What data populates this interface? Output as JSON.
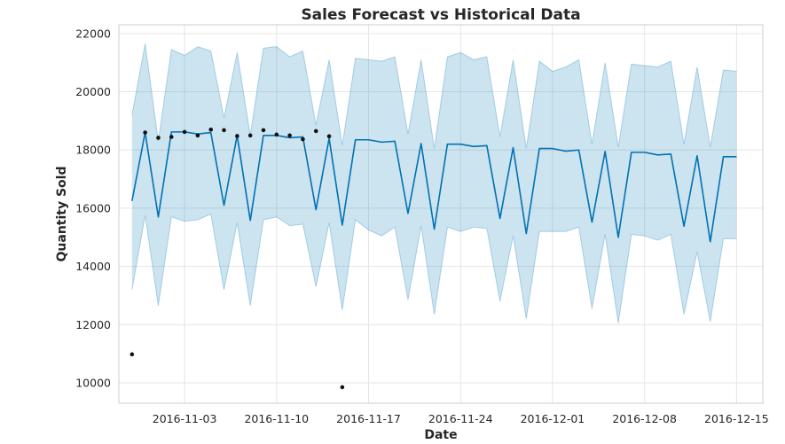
{
  "chart_data": {
    "type": "line",
    "title": "Sales Forecast vs Historical Data",
    "xlabel": "Date",
    "ylabel": "Quantity Sold",
    "x_start": "2016-10-30",
    "xlim": [
      "2016-10-29",
      "2016-12-17"
    ],
    "ylim": [
      9300,
      22300
    ],
    "x_ticks": [
      "2016-11-03",
      "2016-11-10",
      "2016-11-17",
      "2016-11-24",
      "2016-12-01",
      "2016-12-08",
      "2016-12-15"
    ],
    "y_ticks": [
      10000,
      12000,
      14000,
      16000,
      18000,
      20000,
      22000
    ],
    "y_tick_labels": [
      "10000",
      "12000",
      "14000",
      "16000",
      "18000",
      "20000",
      "22000"
    ],
    "grid": true,
    "colors": {
      "forecast": "#0072B2",
      "band": "#0072B2",
      "band_opacity": 0.2,
      "actual": "#111111"
    },
    "forecast": {
      "dates": [
        "2016-10-30",
        "2016-10-31",
        "2016-11-01",
        "2016-11-02",
        "2016-11-03",
        "2016-11-04",
        "2016-11-05",
        "2016-11-06",
        "2016-11-07",
        "2016-11-08",
        "2016-11-09",
        "2016-11-10",
        "2016-11-11",
        "2016-11-12",
        "2016-11-13",
        "2016-11-14",
        "2016-11-15",
        "2016-11-16",
        "2016-11-17",
        "2016-11-18",
        "2016-11-19",
        "2016-11-20",
        "2016-11-21",
        "2016-11-22",
        "2016-11-23",
        "2016-11-24",
        "2016-11-25",
        "2016-11-26",
        "2016-11-27",
        "2016-11-28",
        "2016-11-29",
        "2016-11-30",
        "2016-12-01",
        "2016-12-02",
        "2016-12-03",
        "2016-12-04",
        "2016-12-05",
        "2016-12-06",
        "2016-12-07",
        "2016-12-08",
        "2016-12-09",
        "2016-12-10",
        "2016-12-11",
        "2016-12-12",
        "2016-12-13",
        "2016-12-14",
        "2016-12-15",
        "2016-12-16"
      ],
      "yhat": [
        16250,
        18600,
        15700,
        18620,
        18620,
        18550,
        18600,
        16100,
        18500,
        15580,
        18500,
        18500,
        18420,
        18450,
        15950,
        18400,
        15420,
        18350,
        18350,
        18270,
        18300,
        15820,
        18220,
        15280,
        18200,
        18200,
        18120,
        18150,
        15650,
        18080,
        15130,
        18050,
        18050,
        17960,
        18000,
        15520,
        17950,
        15000,
        17920,
        17920,
        17830,
        17860,
        15380,
        17800,
        14850,
        17770,
        17770,
        null
      ],
      "yhat_upper": [
        19200,
        21650,
        18300,
        21450,
        21250,
        21550,
        21400,
        19100,
        21350,
        18500,
        21500,
        21550,
        21200,
        21400,
        18850,
        21100,
        18150,
        21150,
        21100,
        21050,
        21200,
        18550,
        21100,
        18050,
        21200,
        21350,
        21100,
        21200,
        18450,
        21100,
        18050,
        21050,
        20700,
        20850,
        21100,
        18200,
        21000,
        18100,
        20950,
        20900,
        20850,
        21050,
        18200,
        20850,
        18100,
        20750,
        20700,
        null
      ],
      "yhat_lower": [
        13200,
        15750,
        12650,
        15700,
        15550,
        15600,
        15800,
        13200,
        15500,
        12650,
        15600,
        15700,
        15400,
        15450,
        13300,
        15500,
        12500,
        15600,
        15250,
        15050,
        15350,
        12850,
        15400,
        12350,
        15350,
        15200,
        15350,
        15300,
        12800,
        15050,
        12200,
        15200,
        15200,
        15200,
        15350,
        12550,
        15100,
        12050,
        15100,
        15050,
        14900,
        15100,
        12350,
        14500,
        12100,
        14950,
        14950,
        null
      ]
    },
    "actual": {
      "dates": [
        "2016-10-30",
        "2016-10-31",
        "2016-11-01",
        "2016-11-02",
        "2016-11-03",
        "2016-11-04",
        "2016-11-05",
        "2016-11-06",
        "2016-11-07",
        "2016-11-08",
        "2016-11-09",
        "2016-11-10",
        "2016-11-11",
        "2016-11-12",
        "2016-11-13",
        "2016-11-14",
        "2016-11-15"
      ],
      "values": [
        10980,
        18600,
        18420,
        18450,
        18620,
        18500,
        18700,
        18680,
        18480,
        18500,
        18680,
        18530,
        18500,
        18370,
        18650,
        18470,
        9850
      ]
    }
  }
}
